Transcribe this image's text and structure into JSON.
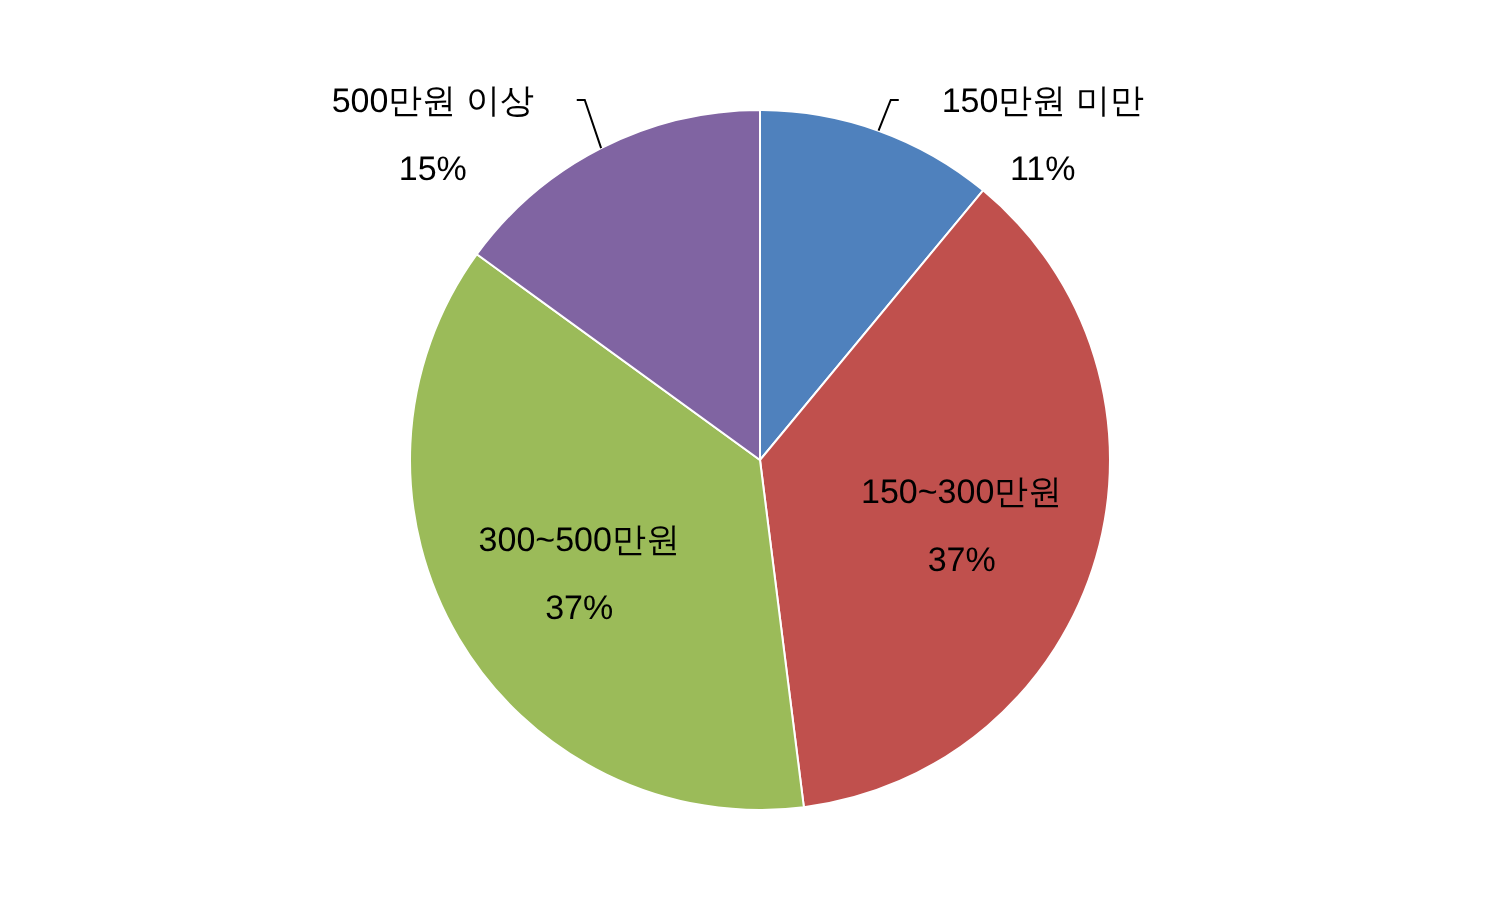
{
  "chart_data": {
    "type": "pie",
    "categories": [
      "150만원 미만",
      "150~300만원",
      "300~500만원",
      "500만원 이상"
    ],
    "values": [
      11,
      37,
      37,
      15
    ],
    "colors": [
      "#4f81bd",
      "#c0504d",
      "#9bbb59",
      "#8064a2"
    ],
    "value_labels": [
      "11%",
      "37%",
      "37%",
      "15%"
    ],
    "legend": false
  }
}
